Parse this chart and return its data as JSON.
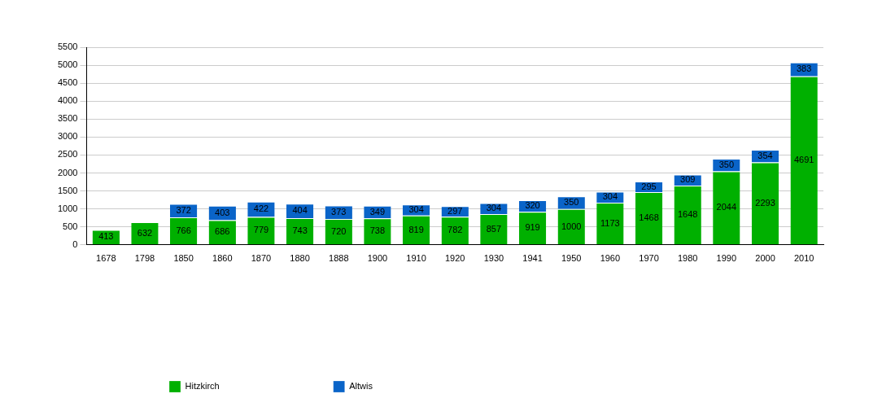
{
  "chart_data": {
    "type": "bar",
    "stacked": true,
    "categories": [
      "1678",
      "1798",
      "1850",
      "1860",
      "1870",
      "1880",
      "1888",
      "1900",
      "1910",
      "1920",
      "1930",
      "1941",
      "1950",
      "1960",
      "1970",
      "1980",
      "1990",
      "2000",
      "2010"
    ],
    "series": [
      {
        "name": "Hitzkirch",
        "color": "#00b000",
        "values": [
          413,
          632,
          766,
          686,
          779,
          743,
          720,
          738,
          819,
          782,
          857,
          919,
          1000,
          1173,
          1468,
          1648,
          2044,
          2293,
          4691
        ]
      },
      {
        "name": "Altwis",
        "color": "#0a64c8",
        "values": [
          null,
          null,
          372,
          403,
          422,
          404,
          373,
          349,
          304,
          297,
          304,
          320,
          350,
          304,
          295,
          309,
          350,
          354,
          383
        ]
      }
    ],
    "ylim": [
      0,
      5500
    ],
    "yticks": [
      0,
      500,
      1000,
      1500,
      2000,
      2500,
      3000,
      3500,
      4000,
      4500,
      5000,
      5500
    ],
    "grid": "y",
    "legend": "bottom",
    "data_labels": true
  }
}
